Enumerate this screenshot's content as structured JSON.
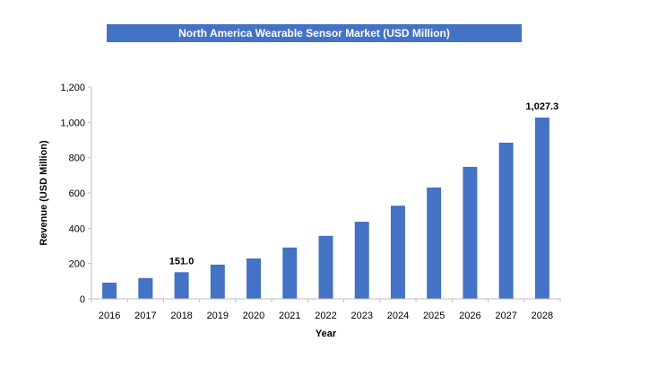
{
  "chart_data": {
    "type": "bar",
    "title": "North America Wearable Sensor Market (USD Million)",
    "xlabel": "Year",
    "ylabel": "Revenue (USD Million)",
    "categories": [
      "2016",
      "2017",
      "2018",
      "2019",
      "2020",
      "2021",
      "2022",
      "2023",
      "2024",
      "2025",
      "2026",
      "2027",
      "2028"
    ],
    "values": [
      92,
      118,
      151.0,
      194,
      229,
      291,
      357,
      437,
      528,
      631,
      748,
      885,
      1027.3
    ],
    "ylim": [
      0,
      1200
    ],
    "yticks": [
      0,
      200,
      400,
      600,
      800,
      1000,
      1200
    ],
    "ytick_labels": [
      "0",
      "200",
      "400",
      "600",
      "800",
      "1,000",
      "1,200"
    ],
    "data_labels": [
      {
        "category": "2018",
        "text": "151.0"
      },
      {
        "category": "2028",
        "text": "1,027.3"
      }
    ],
    "bar_color": "#4472C4",
    "grid": false,
    "legend": "none"
  }
}
